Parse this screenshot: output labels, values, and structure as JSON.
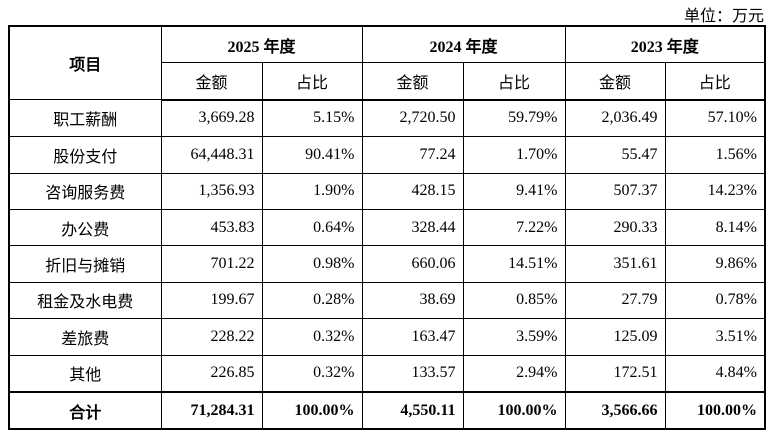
{
  "header": {
    "unit": "单位：万元"
  },
  "table": {
    "item_header": "项目",
    "years": [
      "2025 年度",
      "2024 年度",
      "2023 年度"
    ],
    "sub_headers": [
      "金额",
      "占比",
      "金额",
      "占比",
      "金额",
      "占比"
    ],
    "rows": [
      [
        "职工薪酬",
        "3,669.28",
        "5.15%",
        "2,720.50",
        "59.79%",
        "2,036.49",
        "57.10%"
      ],
      [
        "股份支付",
        "64,448.31",
        "90.41%",
        "77.24",
        "1.70%",
        "55.47",
        "1.56%"
      ],
      [
        "咨询服务费",
        "1,356.93",
        "1.90%",
        "428.15",
        "9.41%",
        "507.37",
        "14.23%"
      ],
      [
        "办公费",
        "453.83",
        "0.64%",
        "328.44",
        "7.22%",
        "290.33",
        "8.14%"
      ],
      [
        "折旧与摊销",
        "701.22",
        "0.98%",
        "660.06",
        "14.51%",
        "351.61",
        "9.86%"
      ],
      [
        "租金及水电费",
        "199.67",
        "0.28%",
        "38.69",
        "0.85%",
        "27.79",
        "0.78%"
      ],
      [
        "差旅费",
        "228.22",
        "0.32%",
        "163.47",
        "3.59%",
        "125.09",
        "3.51%"
      ],
      [
        "其他",
        "226.85",
        "0.32%",
        "133.57",
        "2.94%",
        "172.51",
        "4.84%"
      ]
    ],
    "total": [
      "合计",
      "71,284.31",
      "100.00%",
      "4,550.11",
      "100.00%",
      "3,566.66",
      "100.00%"
    ]
  }
}
